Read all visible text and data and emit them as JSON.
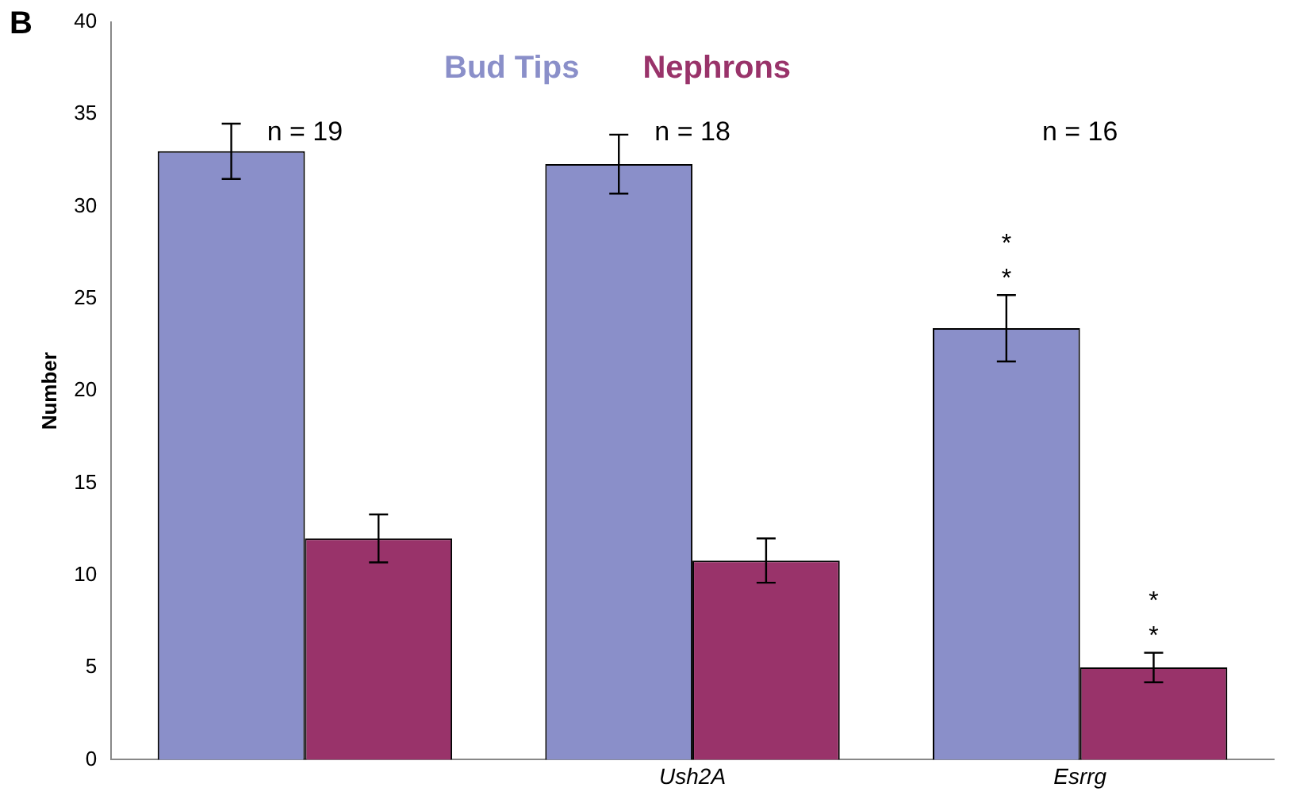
{
  "chart_data": {
    "type": "bar",
    "title": "B",
    "ylabel": "Number",
    "categories": [
      null,
      "Ush2A",
      "Esrrg"
    ],
    "series": [
      {
        "name": "Bud Tips",
        "color": "#8a8fc9",
        "values": [
          33,
          32.3,
          23.4
        ],
        "errors": [
          1.5,
          1.6,
          1.8
        ]
      },
      {
        "name": "Nephrons",
        "color": "#99336a",
        "values": [
          12,
          10.8,
          5
        ],
        "errors": [
          1.3,
          1.2,
          0.8
        ]
      }
    ],
    "ylim": [
      0,
      40
    ],
    "yticks": [
      0,
      5,
      10,
      15,
      20,
      25,
      30,
      35,
      40
    ],
    "grid": false,
    "legend": "top",
    "annotations": [
      "n = 19",
      "n = 18",
      "n = 16",
      "**",
      "**"
    ]
  }
}
